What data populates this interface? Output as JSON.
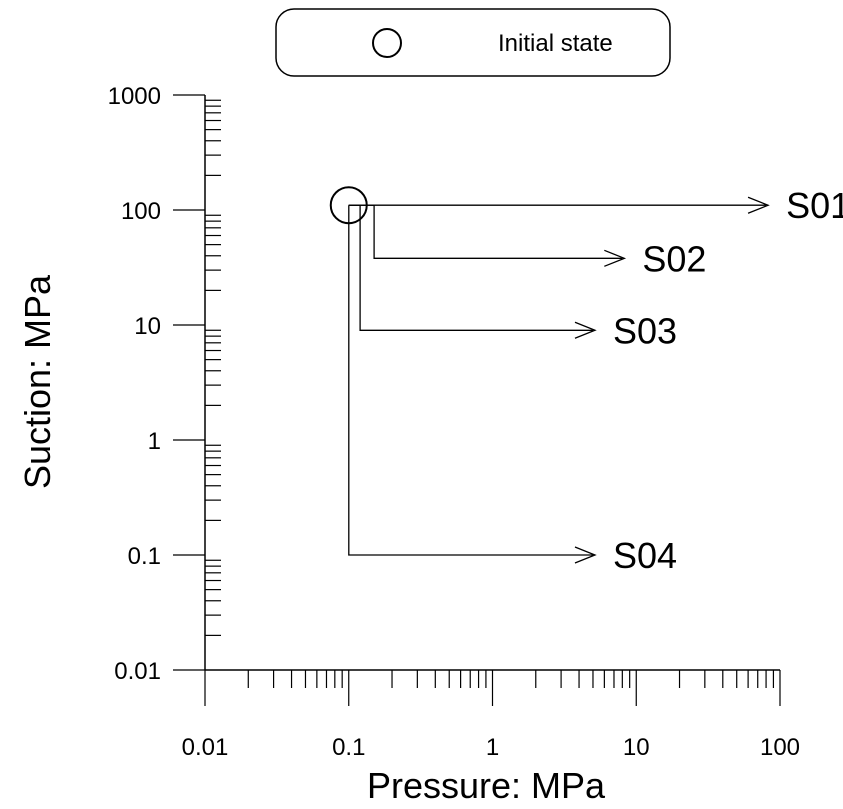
{
  "chart_data": {
    "type": "line",
    "xlabel": "Pressure: MPa",
    "ylabel": "Suction: MPa",
    "xscale": "log",
    "yscale": "log",
    "xlim": [
      0.01,
      100
    ],
    "ylim": [
      0.01,
      1000
    ],
    "x_tick_labels": [
      "0.01",
      "0.1",
      "1",
      "10",
      "100"
    ],
    "y_tick_labels": [
      "0.01",
      "0.1",
      "1",
      "10",
      "100",
      "1000"
    ],
    "x_ticks": [
      0.01,
      0.1,
      1,
      10,
      100
    ],
    "y_ticks": [
      0.01,
      0.1,
      1,
      10,
      100,
      1000
    ],
    "grid": false,
    "legend": {
      "placement": "top-center",
      "entries": [
        {
          "marker": "open-circle",
          "label": "Initial state"
        }
      ]
    },
    "initial_state": {
      "x": 0.1,
      "y": 110
    },
    "series": [
      {
        "name": "S01",
        "points": [
          {
            "x": 0.1,
            "y": 110
          },
          {
            "x": 80,
            "y": 110
          }
        ]
      },
      {
        "name": "S02",
        "points": [
          {
            "x": 0.1,
            "y": 110
          },
          {
            "x": 0.15,
            "y": 110
          },
          {
            "x": 0.15,
            "y": 38
          },
          {
            "x": 8,
            "y": 38
          }
        ]
      },
      {
        "name": "S03",
        "points": [
          {
            "x": 0.1,
            "y": 110
          },
          {
            "x": 0.12,
            "y": 110
          },
          {
            "x": 0.12,
            "y": 9
          },
          {
            "x": 5,
            "y": 9
          }
        ]
      },
      {
        "name": "S04",
        "points": [
          {
            "x": 0.1,
            "y": 110
          },
          {
            "x": 0.1,
            "y": 0.1
          },
          {
            "x": 5,
            "y": 0.1
          }
        ]
      }
    ]
  }
}
